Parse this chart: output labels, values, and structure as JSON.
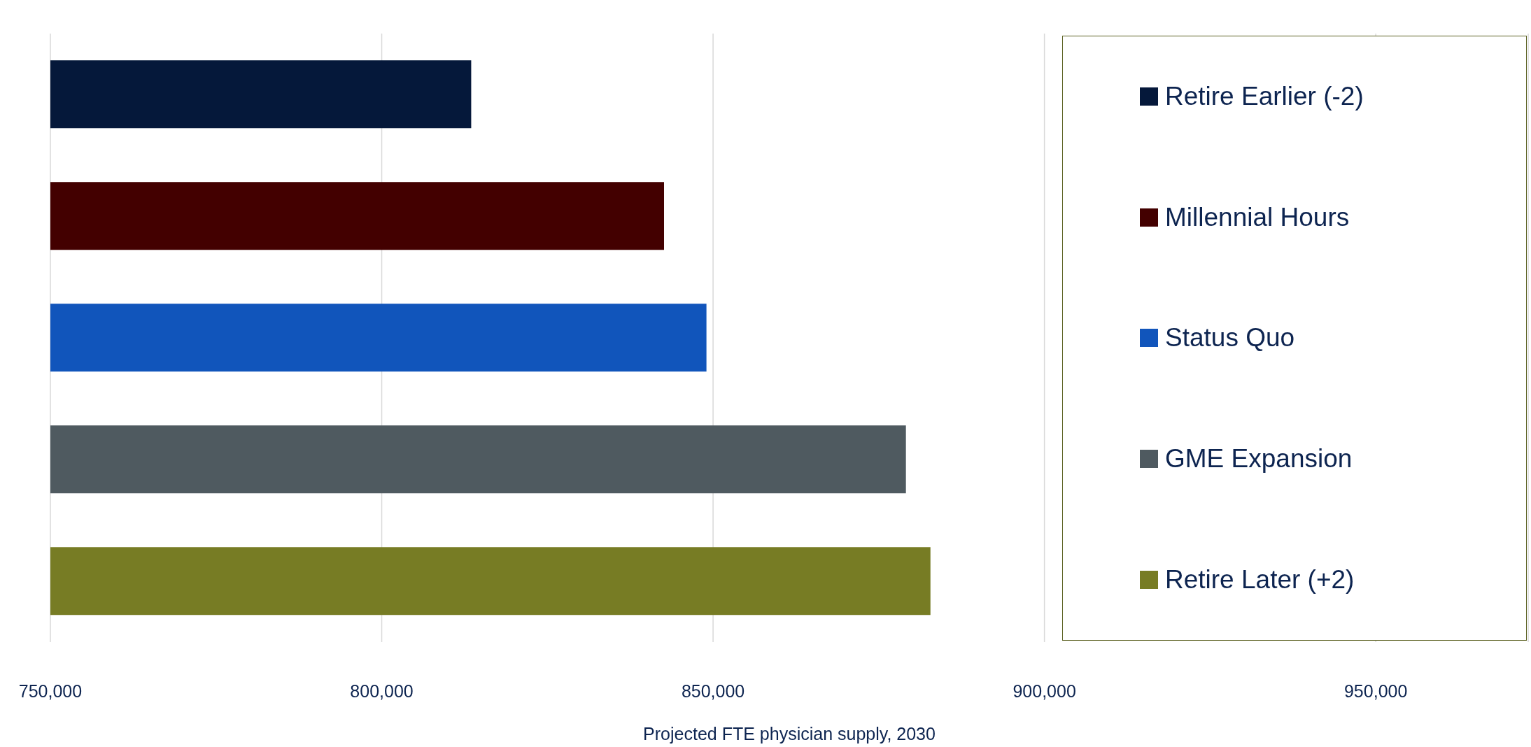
{
  "chart_data": {
    "type": "bar",
    "orientation": "horizontal",
    "stacked": true,
    "xlabel": "Projected FTE physician  supply, 2030",
    "categories": [
      null,
      null,
      null,
      null,
      null
    ],
    "series": [
      {
        "name": "Retire Earlier (-2)",
        "color": "#05183a",
        "values": [
          813500,
          null,
          null,
          null,
          null
        ]
      },
      {
        "name": "Millennial Hours",
        "color": "#430000",
        "values": [
          null,
          842600,
          null,
          null,
          null
        ]
      },
      {
        "name": "Status Quo",
        "color": "#1155bb",
        "values": [
          null,
          null,
          849000,
          null,
          null
        ]
      },
      {
        "name": "GME Expansion",
        "color": "#4f5a60",
        "values": [
          null,
          null,
          null,
          879100,
          null
        ]
      },
      {
        "name": "Retire Later (+2)",
        "color": "#777c24",
        "values": [
          null,
          null,
          null,
          null,
          882800
        ]
      }
    ],
    "xlim": [
      750000,
      973000
    ],
    "xticks": [
      {
        "value": 750000,
        "label": "750,000"
      },
      {
        "value": 800000,
        "label": "800,000"
      },
      {
        "value": 850000,
        "label": "850,000"
      },
      {
        "value": 900000,
        "label": "900,000"
      },
      {
        "value": 950000,
        "label": "950,000"
      }
    ],
    "grid": "x",
    "legend": "right"
  }
}
